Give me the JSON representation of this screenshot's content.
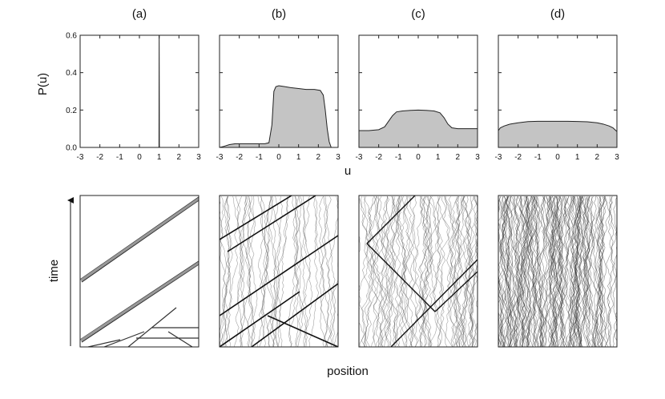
{
  "figure": {
    "shared_ylabel": "P(u)",
    "shared_xlabel": "u",
    "time_label": "time",
    "position_label": "position"
  },
  "chart_data": [
    {
      "panel": "(a)",
      "type": "area",
      "xlim": [
        -3,
        3
      ],
      "ylim": [
        0,
        0.6
      ],
      "xticks": [
        -3,
        -2,
        -1,
        0,
        1,
        2,
        3
      ],
      "yticks": [
        0.0,
        0.2,
        0.4,
        0.6
      ],
      "ytick_labels": [
        "0.0",
        "0.2",
        "0.4",
        "0.6"
      ],
      "x": [
        -3,
        0.99,
        1.0,
        1.01,
        3
      ],
      "y": [
        0,
        0,
        0.6,
        0,
        0
      ],
      "show_yticklabels": true
    },
    {
      "panel": "(b)",
      "type": "area",
      "xlim": [
        -3,
        3
      ],
      "ylim": [
        0,
        0.6
      ],
      "xticks": [
        -3,
        -2,
        -1,
        0,
        1,
        2,
        3
      ],
      "yticks": [
        0.0,
        0.2,
        0.4,
        0.6
      ],
      "x": [
        -3.0,
        -2.8,
        -2.5,
        -2.2,
        -2.0,
        -1.5,
        -1.0,
        -0.7,
        -0.5,
        -0.35,
        -0.25,
        -0.15,
        0.0,
        0.3,
        0.6,
        1.0,
        1.4,
        1.8,
        2.1,
        2.25,
        2.35,
        2.45,
        2.55,
        2.65,
        2.8,
        3.0
      ],
      "y": [
        0.0,
        0.005,
        0.015,
        0.02,
        0.02,
        0.02,
        0.02,
        0.02,
        0.025,
        0.12,
        0.3,
        0.325,
        0.33,
        0.325,
        0.32,
        0.315,
        0.31,
        0.31,
        0.305,
        0.28,
        0.2,
        0.1,
        0.03,
        0.0,
        0.0,
        0.0
      ],
      "show_yticklabels": false
    },
    {
      "panel": "(c)",
      "type": "area",
      "xlim": [
        -3,
        3
      ],
      "ylim": [
        0,
        0.6
      ],
      "xticks": [
        -3,
        -2,
        -1,
        0,
        1,
        2,
        3
      ],
      "yticks": [
        0.0,
        0.2,
        0.4,
        0.6
      ],
      "x": [
        -3.0,
        -2.5,
        -2.0,
        -1.7,
        -1.5,
        -1.3,
        -1.1,
        -0.8,
        -0.4,
        0.0,
        0.4,
        0.8,
        1.1,
        1.3,
        1.5,
        1.7,
        2.0,
        2.5,
        3.0
      ],
      "y": [
        0.09,
        0.09,
        0.095,
        0.11,
        0.14,
        0.17,
        0.19,
        0.195,
        0.198,
        0.2,
        0.198,
        0.195,
        0.185,
        0.16,
        0.125,
        0.105,
        0.1,
        0.1,
        0.1
      ],
      "show_yticklabels": false
    },
    {
      "panel": "(d)",
      "type": "area",
      "xlim": [
        -3,
        3
      ],
      "ylim": [
        0,
        0.6
      ],
      "xticks": [
        -3,
        -2,
        -1,
        0,
        1,
        2,
        3
      ],
      "yticks": [
        0.0,
        0.2,
        0.4,
        0.6
      ],
      "x": [
        -3.0,
        -2.9,
        -2.7,
        -2.4,
        -2.0,
        -1.5,
        -1.0,
        -0.5,
        0.0,
        0.5,
        1.0,
        1.5,
        2.0,
        2.3,
        2.6,
        2.8,
        2.9,
        3.0
      ],
      "y": [
        0.09,
        0.105,
        0.115,
        0.125,
        0.132,
        0.138,
        0.14,
        0.14,
        0.14,
        0.14,
        0.139,
        0.137,
        0.132,
        0.125,
        0.115,
        0.105,
        0.095,
        0.085
      ],
      "show_yticklabels": false
    }
  ]
}
